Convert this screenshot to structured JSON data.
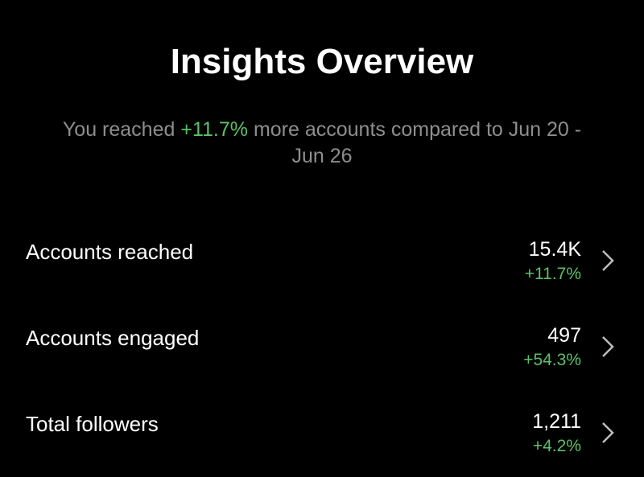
{
  "header": {
    "title": "Insights Overview"
  },
  "summary": {
    "prefix": "You reached",
    "highlight": "+11.7%",
    "suffix": "more accounts compared to Jun 20 - Jun 26"
  },
  "rows": [
    {
      "label": "Accounts reached",
      "value": "15.4K",
      "change": "+11.7%"
    },
    {
      "label": "Accounts engaged",
      "value": "497",
      "change": "+54.3%"
    },
    {
      "label": "Total followers",
      "value": "1,211",
      "change": "+4.2%"
    }
  ]
}
